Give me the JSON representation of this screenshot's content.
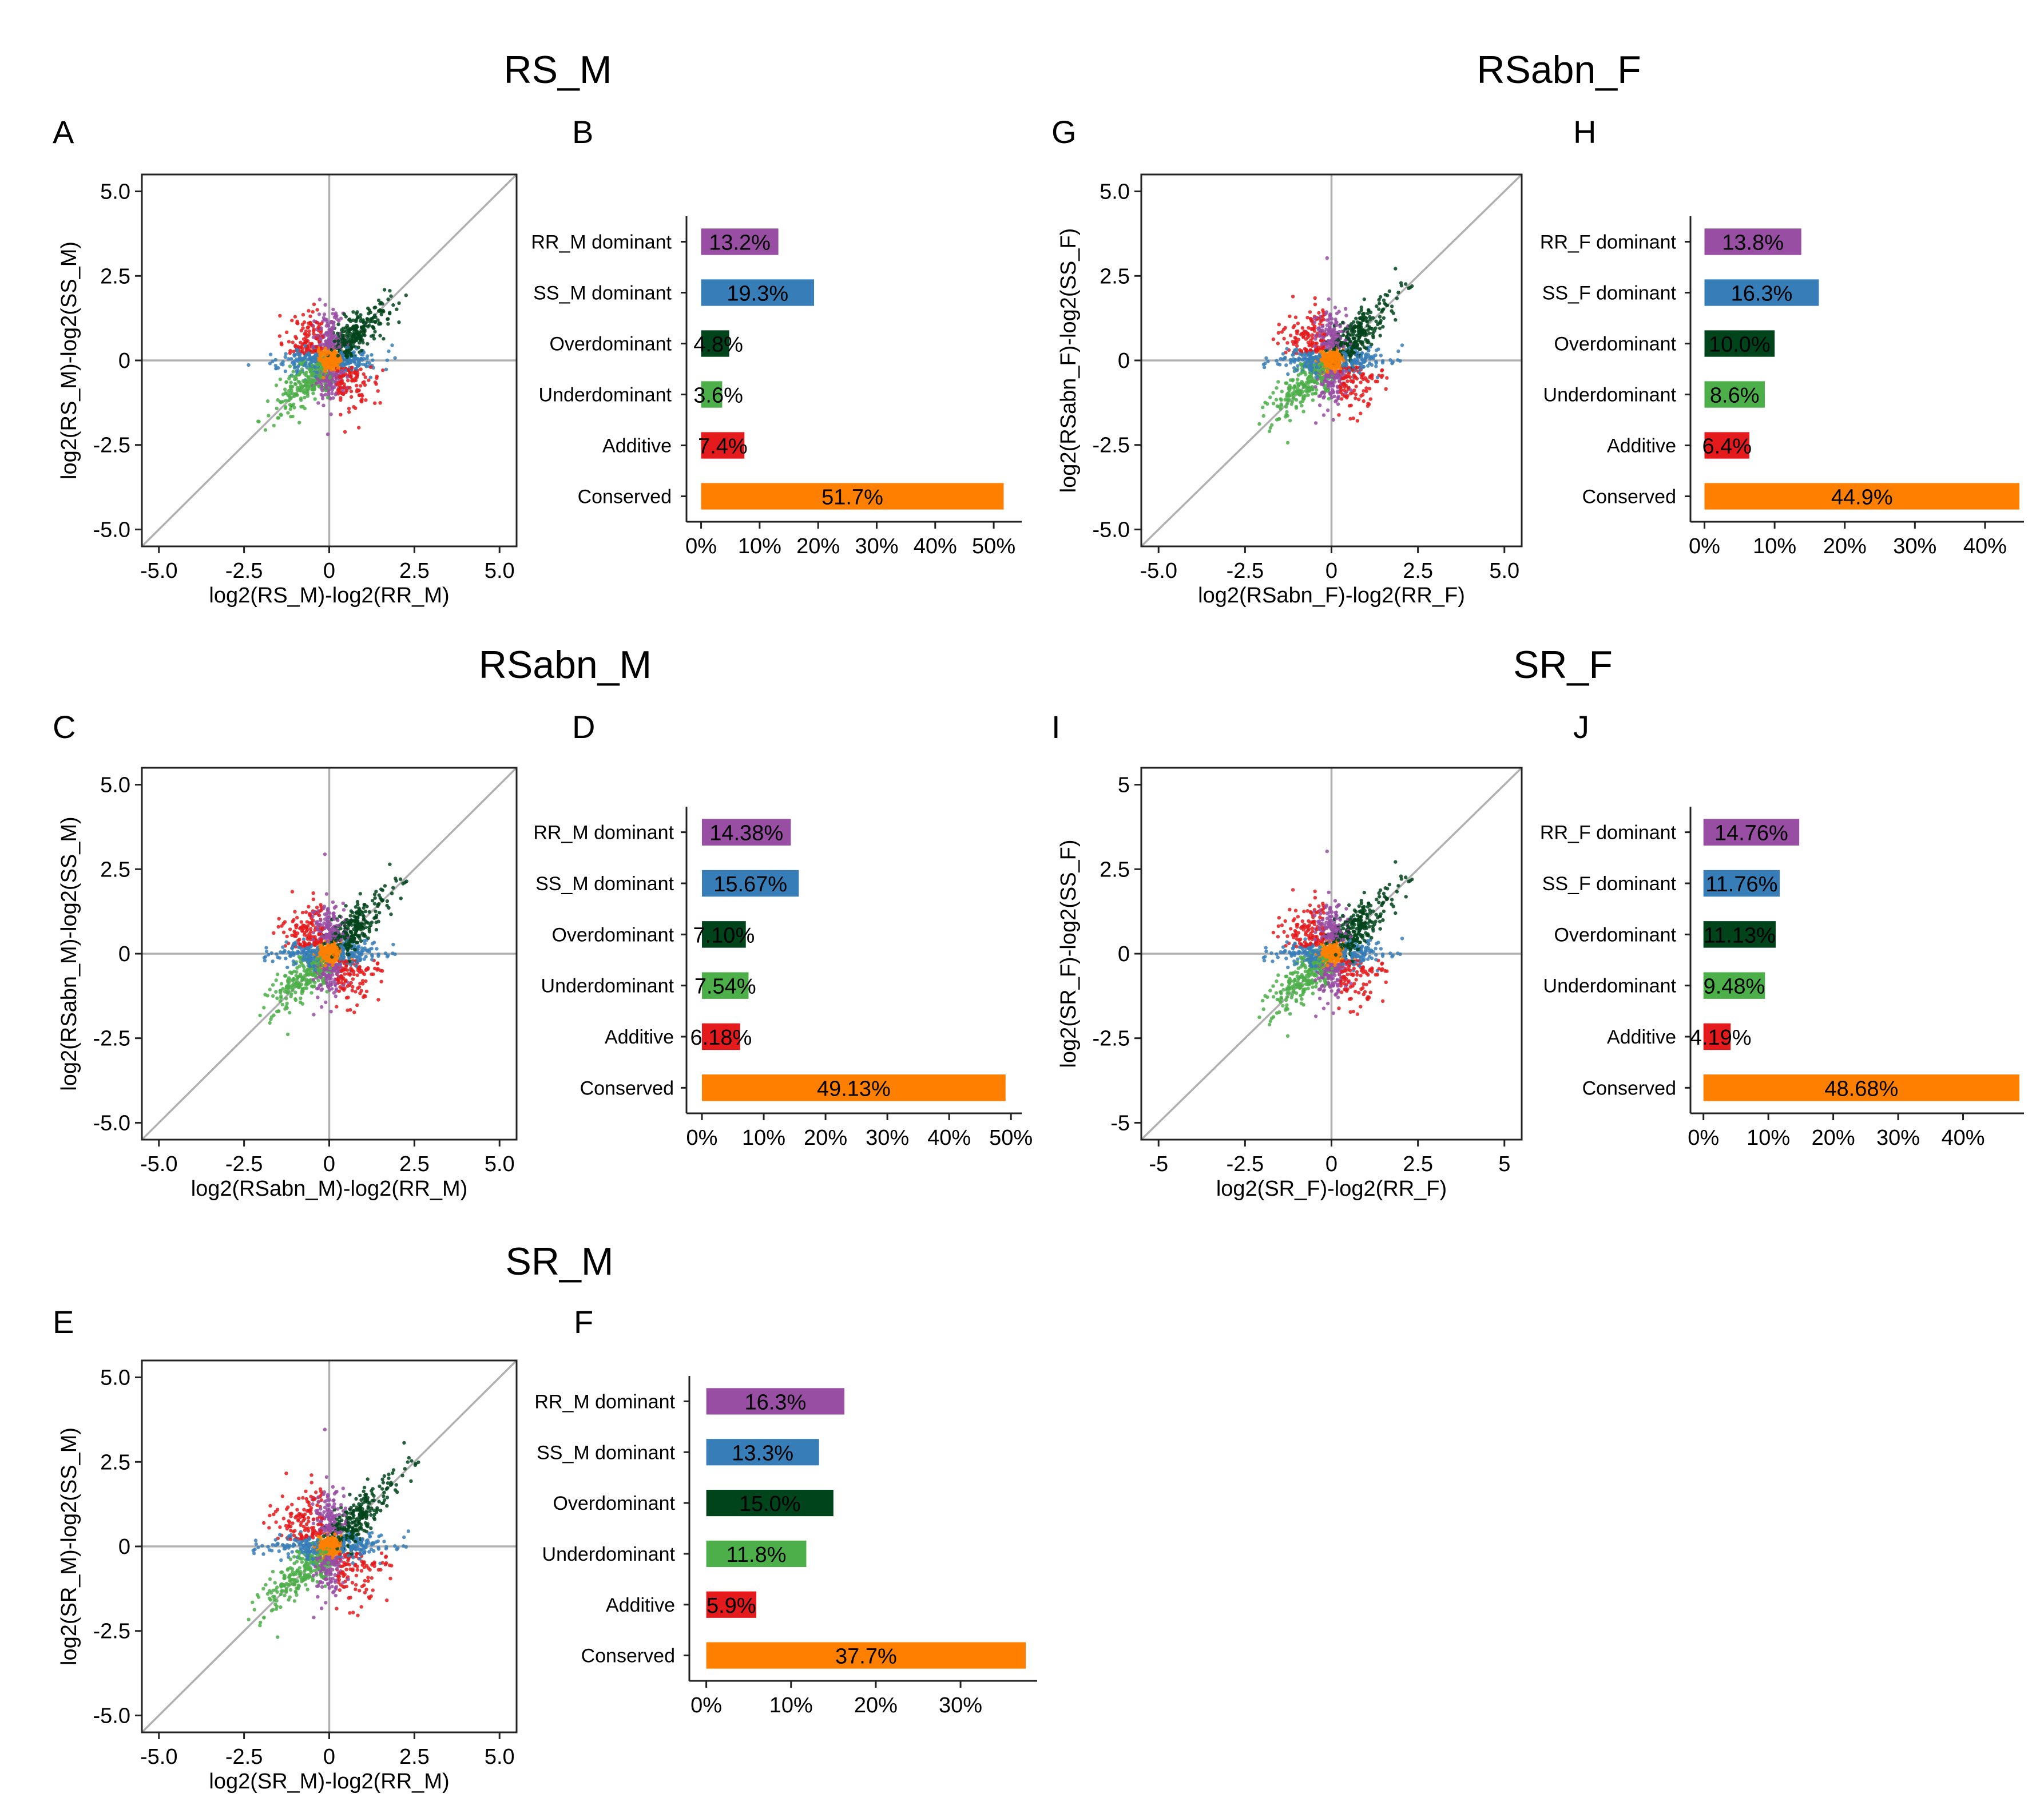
{
  "palette": {
    "RR dominant": "#984ea3",
    "SS dominant": "#377eb8",
    "Overdominant": "#00441b",
    "Underdominant": "#4daf4a",
    "Additive": "#e41a1c",
    "Conserved": "#ff7f00"
  },
  "chart_data": [
    {
      "group": "RS_M",
      "panels": [
        {
          "letter": "A",
          "type": "scatter",
          "xlabel": "log2(RS_M)-log2(RR_M)",
          "ylabel": "log2(RS_M)-log2(SS_M)",
          "xlim": [
            -5.5,
            5.5
          ],
          "ylim": [
            -5.5,
            5.5
          ],
          "xticks": [
            "-5.0",
            "-2.5",
            "0",
            "2.5",
            "5.0"
          ],
          "yticks": [
            "-5.0",
            "-2.5",
            "0",
            "2.5",
            "5.0"
          ],
          "grid": false
        },
        {
          "letter": "B",
          "type": "bar",
          "orientation": "horizontal",
          "categories": [
            "RR_M dominant",
            "SS_M dominant",
            "Overdominant",
            "Underdominant",
            "Additive",
            "Conserved"
          ],
          "values": [
            13.2,
            19.3,
            4.8,
            3.6,
            7.4,
            51.7
          ],
          "labels": [
            "13.2%",
            "19.3%",
            "4.8%",
            "3.6%",
            "7.4%",
            "51.7%"
          ],
          "xticks": [
            "0%",
            "10%",
            "20%",
            "30%",
            "40%",
            "50%"
          ],
          "xlim": [
            -2.5,
            54
          ]
        }
      ]
    },
    {
      "group": "RSabn_F",
      "panels": [
        {
          "letter": "G",
          "type": "scatter",
          "xlabel": "log2(RSabn_F)-log2(RR_F)",
          "ylabel": "log2(RSabn_F)-log2(SS_F)",
          "xlim": [
            -5.5,
            5.5
          ],
          "ylim": [
            -5.5,
            5.5
          ],
          "xticks": [
            "-5.0",
            "-2.5",
            "0",
            "2.5",
            "5.0"
          ],
          "yticks": [
            "-5.0",
            "-2.5",
            "0",
            "2.5",
            "5.0"
          ],
          "grid": false
        },
        {
          "letter": "H",
          "type": "bar",
          "orientation": "horizontal",
          "categories": [
            "RR_F dominant",
            "SS_F dominant",
            "Overdominant",
            "Underdominant",
            "Additive",
            "Conserved"
          ],
          "values": [
            13.8,
            16.3,
            10.0,
            8.6,
            6.4,
            44.9
          ],
          "labels": [
            "13.8%",
            "16.3%",
            "10.0%",
            "8.6%",
            "6.4%",
            "44.9%"
          ],
          "xticks": [
            "0%",
            "10%",
            "20%",
            "30%",
            "40%"
          ],
          "xlim": [
            -2,
            44.9
          ]
        }
      ]
    },
    {
      "group": "RSabn_M",
      "panels": [
        {
          "letter": "C",
          "type": "scatter",
          "xlabel": "log2(RSabn_M)-log2(RR_M)",
          "ylabel": "log2(RSabn_M)-log2(SS_M)",
          "xlim": [
            -5.5,
            5.5
          ],
          "ylim": [
            -5.5,
            5.5
          ],
          "xticks": [
            "-5.0",
            "-2.5",
            "0",
            "2.5",
            "5.0"
          ],
          "yticks": [
            "-5.0",
            "-2.5",
            "0",
            "2.5",
            "5.0"
          ],
          "grid": false
        },
        {
          "letter": "D",
          "type": "bar",
          "orientation": "horizontal",
          "categories": [
            "RR_M dominant",
            "SS_M dominant",
            "Overdominant",
            "Underdominant",
            "Additive",
            "Conserved"
          ],
          "values": [
            14.38,
            15.67,
            7.1,
            7.54,
            6.18,
            49.13
          ],
          "labels": [
            "14.38%",
            "15.67%",
            "7.10%",
            "7.54%",
            "6.18%",
            "49.13%"
          ],
          "xticks": [
            "0%",
            "10%",
            "20%",
            "30%",
            "40%",
            "50%"
          ],
          "xlim": [
            -2.5,
            51
          ]
        }
      ]
    },
    {
      "group": "SR_F",
      "panels": [
        {
          "letter": "I",
          "type": "scatter",
          "xlabel": "log2(SR_F)-log2(RR_F)",
          "ylabel": "log2(SR_F)-log2(SS_F)",
          "xlim": [
            -5.5,
            5.5
          ],
          "ylim": [
            -5.5,
            5.5
          ],
          "xticks": [
            "-5",
            "-2.5",
            "0",
            "2.5",
            "5"
          ],
          "yticks": [
            "-5",
            "-2.5",
            "0",
            "2.5",
            "5"
          ],
          "grid": false
        },
        {
          "letter": "J",
          "type": "bar",
          "orientation": "horizontal",
          "categories": [
            "RR_F dominant",
            "SS_F dominant",
            "Overdominant",
            "Underdominant",
            "Additive",
            "Conserved"
          ],
          "values": [
            14.76,
            11.76,
            11.13,
            9.48,
            4.19,
            48.68
          ],
          "labels": [
            "14.76%",
            "11.76%",
            "11.13%",
            "9.48%",
            "4.19%",
            "48.68%"
          ],
          "xticks": [
            "0%",
            "10%",
            "20%",
            "30%",
            "40%"
          ],
          "xlim": [
            -2,
            48.68
          ]
        }
      ]
    },
    {
      "group": "SR_M",
      "panels": [
        {
          "letter": "E",
          "type": "scatter",
          "xlabel": "log2(SR_M)-log2(RR_M)",
          "ylabel": "log2(SR_M)-log2(SS_M)",
          "xlim": [
            -5.5,
            5.5
          ],
          "ylim": [
            -5.5,
            5.5
          ],
          "xticks": [
            "-5.0",
            "-2.5",
            "0",
            "2.5",
            "5.0"
          ],
          "yticks": [
            "-5.0",
            "-2.5",
            "0",
            "2.5",
            "5.0"
          ],
          "grid": false
        },
        {
          "letter": "F",
          "type": "bar",
          "orientation": "horizontal",
          "categories": [
            "RR_M dominant",
            "SS_M dominant",
            "Overdominant",
            "Underdominant",
            "Additive",
            "Conserved"
          ],
          "values": [
            16.3,
            13.3,
            15.0,
            11.8,
            5.9,
            37.7
          ],
          "labels": [
            "16.3%",
            "13.3%",
            "15.0%",
            "11.8%",
            "5.9%",
            "37.7%"
          ],
          "xticks": [
            "0%",
            "10%",
            "20%",
            "30%"
          ],
          "xlim": [
            -2,
            38.5
          ]
        }
      ]
    }
  ]
}
